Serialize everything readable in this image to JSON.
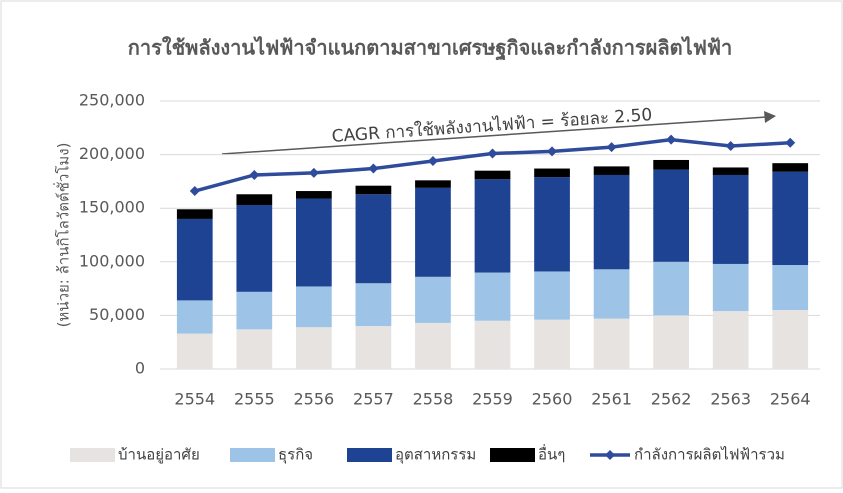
{
  "chart_data": {
    "type": "bar",
    "stacked": true,
    "title": "การใช้พลังงานไฟฟ้าจำแนกตามสาขาเศรษฐกิจและกำลังการผลิตไฟฟ้า",
    "y_label": "(หน่วย: ล้านกิโลวัตต์ชั่วโมง)",
    "annotation": "CAGR การใช้พลังงานไฟฟ้า = ร้อยละ 2.50",
    "categories": [
      "2554",
      "2555",
      "2556",
      "2557",
      "2558",
      "2559",
      "2560",
      "2561",
      "2562",
      "2563",
      "2564"
    ],
    "series": [
      {
        "name": "บ้านอยู่อาศัย",
        "color": "#e7e3e0",
        "values": [
          33000,
          37000,
          39000,
          40000,
          43000,
          45000,
          46000,
          47000,
          50000,
          54000,
          55000
        ]
      },
      {
        "name": "ธุรกิจ",
        "color": "#9dc3e6",
        "values": [
          31000,
          35000,
          38000,
          40000,
          43000,
          45000,
          45000,
          46000,
          50000,
          44000,
          42000
        ]
      },
      {
        "name": "อุตสาหกรรม",
        "color": "#1f4393",
        "values": [
          76000,
          81000,
          82000,
          83000,
          83000,
          87000,
          88000,
          88000,
          86000,
          83000,
          87000
        ]
      },
      {
        "name": "อื่นๆ",
        "color": "#000000",
        "values": [
          9000,
          10000,
          7000,
          8000,
          7000,
          8000,
          8000,
          8000,
          9000,
          7000,
          8000
        ]
      },
      {
        "name": "กำลังการผลิตไฟฟ้ารวม",
        "color": "#2f4c9c",
        "type": "line",
        "values": [
          166000,
          181000,
          183000,
          187000,
          194000,
          201000,
          203000,
          207000,
          214000,
          208000,
          211000
        ]
      }
    ],
    "ylim": [
      0,
      250000
    ],
    "yticks": [
      0,
      {
        "value": 50000,
        "label": "50,000"
      },
      {
        "value": 100000,
        "label": "100,000"
      },
      {
        "value": 150000,
        "label": "150,000"
      },
      {
        "value": 200000,
        "label": "200,000"
      },
      {
        "value": 250000,
        "label": "250,000"
      }
    ],
    "grid": true,
    "legend": "bottom"
  }
}
